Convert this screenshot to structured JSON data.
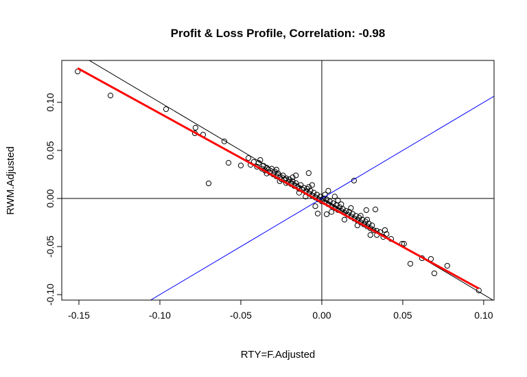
{
  "chart_data": {
    "type": "scatter",
    "title": "Profit & Loss Profile, Correlation: -0.98",
    "xlabel": "RTY=F.Adjusted",
    "ylabel": "RWM.Adjusted",
    "xlim": [
      -0.1606,
      0.1064
    ],
    "ylim": [
      -0.1057,
      0.1436
    ],
    "xticks": [
      -0.15,
      -0.1,
      -0.05,
      0.0,
      0.05,
      0.1
    ],
    "xtick_labels": [
      "-0.15",
      "-0.10",
      "-0.05",
      "0.00",
      "0.05",
      "0.10"
    ],
    "yticks": [
      -0.1,
      -0.05,
      0.0,
      0.05,
      0.1
    ],
    "ytick_labels": [
      "-0.10",
      "-0.05",
      "0.00",
      "0.05",
      "0.10"
    ],
    "grid": false,
    "lines": [
      {
        "kind": "reference",
        "slope": -1,
        "intercept": 0,
        "color": "#000000"
      },
      {
        "kind": "reference",
        "slope": 1,
        "intercept": 0,
        "color": "#0000ff"
      },
      {
        "kind": "regression",
        "slope": -0.925,
        "intercept": -0.004,
        "x_range": [
          -0.1508,
          0.097
        ],
        "color": "#ff0000"
      }
    ],
    "axes_lines": {
      "h": 0,
      "v": 0,
      "color": "#000000"
    },
    "points": [
      [
        -0.1508,
        0.1321
      ],
      [
        -0.1305,
        0.1071
      ],
      [
        -0.0962,
        0.0929
      ],
      [
        -0.078,
        0.0736
      ],
      [
        -0.0784,
        0.0679
      ],
      [
        -0.0733,
        0.0664
      ],
      [
        -0.0602,
        0.0593
      ],
      [
        -0.0576,
        0.0371
      ],
      [
        -0.0699,
        0.0157
      ],
      [
        -0.05,
        0.0343
      ],
      [
        -0.0453,
        0.0421
      ],
      [
        0.0199,
        0.0186
      ],
      [
        -0.0081,
        0.0264
      ],
      [
        0.0496,
        -0.0471
      ],
      [
        0.0508,
        -0.0471
      ],
      [
        0.0547,
        -0.0679
      ],
      [
        0.0619,
        -0.0621
      ],
      [
        0.0674,
        -0.0629
      ],
      [
        0.0695,
        -0.0779
      ],
      [
        0.0775,
        -0.07
      ],
      [
        0.097,
        -0.0957
      ],
      [
        0.0428,
        -0.0421
      ],
      [
        0.039,
        -0.0329
      ],
      [
        0.0339,
        -0.0336
      ],
      [
        0.0331,
        -0.0114
      ],
      [
        0.0275,
        -0.0121
      ],
      [
        -0.0025,
        -0.0157
      ],
      [
        0.003,
        -0.0164
      ],
      [
        -0.044,
        0.035
      ],
      [
        -0.042,
        0.038
      ],
      [
        -0.04,
        0.033
      ],
      [
        -0.039,
        0.037
      ],
      [
        -0.037,
        0.031
      ],
      [
        -0.036,
        0.034
      ],
      [
        -0.035,
        0.029
      ],
      [
        -0.034,
        0.032
      ],
      [
        -0.033,
        0.03
      ],
      [
        -0.032,
        0.027
      ],
      [
        -0.031,
        0.031
      ],
      [
        -0.03,
        0.025
      ],
      [
        -0.029,
        0.028
      ],
      [
        -0.028,
        0.023
      ],
      [
        -0.027,
        0.026
      ],
      [
        -0.026,
        0.022
      ],
      [
        -0.025,
        0.02
      ],
      [
        -0.024,
        0.024
      ],
      [
        -0.023,
        0.019
      ],
      [
        -0.022,
        0.021
      ],
      [
        -0.021,
        0.017
      ],
      [
        -0.02,
        0.02
      ],
      [
        -0.019,
        0.015
      ],
      [
        -0.018,
        0.018
      ],
      [
        -0.017,
        0.013
      ],
      [
        -0.016,
        0.016
      ],
      [
        -0.015,
        0.012
      ],
      [
        -0.014,
        0.01
      ],
      [
        -0.013,
        0.014
      ],
      [
        -0.012,
        0.009
      ],
      [
        -0.011,
        0.011
      ],
      [
        -0.01,
        0.007
      ],
      [
        -0.009,
        0.01
      ],
      [
        -0.008,
        0.005
      ],
      [
        -0.007,
        0.008
      ],
      [
        -0.006,
        0.003
      ],
      [
        -0.005,
        0.006
      ],
      [
        -0.004,
        0.001
      ],
      [
        -0.003,
        0.004
      ],
      [
        -0.002,
        -0.001
      ],
      [
        -0.001,
        0.002
      ],
      [
        0.0,
        -0.003
      ],
      [
        0.001,
        0.0
      ],
      [
        0.002,
        -0.004
      ],
      [
        0.003,
        -0.001
      ],
      [
        0.004,
        -0.006
      ],
      [
        0.005,
        -0.003
      ],
      [
        0.006,
        -0.008
      ],
      [
        0.007,
        -0.005
      ],
      [
        0.008,
        -0.01
      ],
      [
        0.009,
        -0.007
      ],
      [
        0.01,
        -0.012
      ],
      [
        0.011,
        -0.009
      ],
      [
        0.012,
        -0.013
      ],
      [
        0.013,
        -0.011
      ],
      [
        0.014,
        -0.015
      ],
      [
        0.015,
        -0.013
      ],
      [
        0.016,
        -0.017
      ],
      [
        0.017,
        -0.014
      ],
      [
        0.018,
        -0.019
      ],
      [
        0.019,
        -0.016
      ],
      [
        0.02,
        -0.021
      ],
      [
        0.021,
        -0.018
      ],
      [
        0.022,
        -0.023
      ],
      [
        0.023,
        -0.02
      ],
      [
        0.024,
        -0.025
      ],
      [
        0.025,
        -0.022
      ],
      [
        0.026,
        -0.027
      ],
      [
        0.027,
        -0.024
      ],
      [
        0.028,
        -0.029
      ],
      [
        0.029,
        -0.026
      ],
      [
        0.03,
        -0.031
      ],
      [
        0.031,
        -0.028
      ],
      [
        0.032,
        -0.033
      ],
      [
        0.034,
        -0.038
      ],
      [
        0.036,
        -0.035
      ],
      [
        0.038,
        -0.04
      ],
      [
        0.04,
        -0.037
      ],
      [
        -0.038,
        0.04
      ],
      [
        -0.028,
        0.03
      ],
      [
        -0.018,
        0.022
      ],
      [
        -0.008,
        0.012
      ],
      [
        0.002,
        0.004
      ],
      [
        0.008,
        0.002
      ],
      [
        -0.014,
        0.006
      ],
      [
        -0.022,
        0.016
      ],
      [
        0.012,
        -0.006
      ],
      [
        0.018,
        -0.01
      ],
      [
        0.024,
        -0.018
      ],
      [
        0.028,
        -0.022
      ],
      [
        -0.004,
        -0.008
      ],
      [
        0.006,
        -0.014
      ],
      [
        -0.01,
        0.002
      ],
      [
        -0.026,
        0.018
      ],
      [
        -0.034,
        0.026
      ],
      [
        0.014,
        -0.022
      ],
      [
        0.022,
        -0.028
      ],
      [
        0.03,
        -0.038
      ],
      [
        -0.006,
        0.014
      ],
      [
        -0.016,
        0.024
      ],
      [
        0.004,
        0.008
      ],
      [
        0.01,
        -0.002
      ]
    ]
  }
}
